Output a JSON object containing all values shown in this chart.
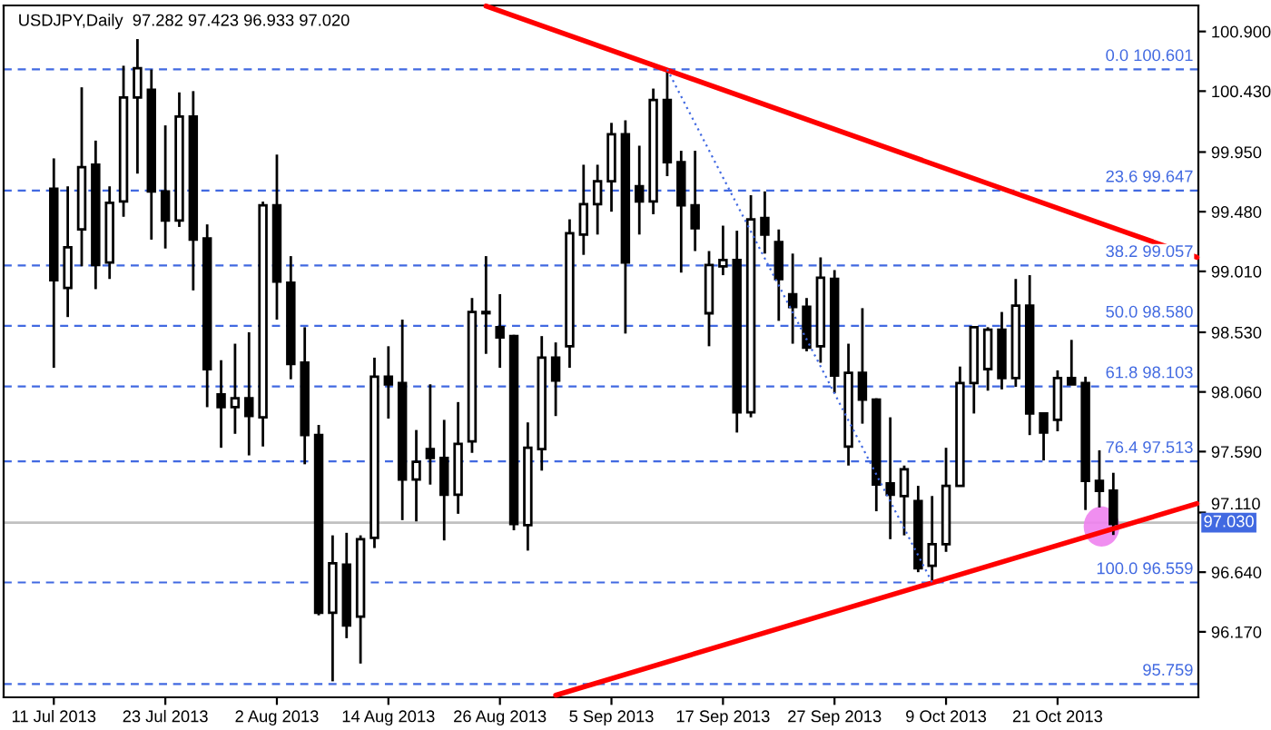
{
  "chart_data": {
    "type": "candlestick",
    "title": "USDJPY,Daily  97.282 97.423 96.933 97.020",
    "categories": [
      "11 Jul 2013",
      null,
      null,
      null,
      null,
      null,
      null,
      null,
      "23 Jul 2013",
      null,
      null,
      null,
      null,
      null,
      null,
      null,
      "2 Aug 2013",
      null,
      null,
      null,
      null,
      null,
      null,
      null,
      "14 Aug 2013",
      null,
      null,
      null,
      null,
      null,
      null,
      null,
      "26 Aug 2013",
      null,
      null,
      null,
      null,
      null,
      null,
      null,
      "5 Sep 2013",
      null,
      null,
      null,
      null,
      null,
      null,
      null,
      "17 Sep 2013",
      null,
      null,
      null,
      null,
      null,
      null,
      null,
      "27 Sep 2013",
      null,
      null,
      null,
      null,
      null,
      null,
      null,
      "9 Oct 2013",
      null,
      null,
      null,
      null,
      null,
      null,
      null,
      "21 Oct 2013",
      null,
      null,
      null,
      null,
      null,
      null,
      null,
      null,
      null,
      null
    ],
    "ohlc": [
      [
        99.66,
        99.9,
        98.25,
        98.94
      ],
      [
        98.88,
        99.68,
        98.65,
        99.2
      ],
      [
        99.34,
        100.46,
        99.05,
        99.83
      ],
      [
        99.85,
        100.04,
        98.87,
        99.06
      ],
      [
        99.08,
        99.68,
        98.95,
        99.55
      ],
      [
        99.56,
        100.63,
        99.44,
        100.38
      ],
      [
        100.38,
        100.84,
        99.78,
        100.61
      ],
      [
        100.44,
        100.6,
        99.26,
        99.64
      ],
      [
        99.64,
        100.16,
        99.19,
        99.41
      ],
      [
        99.41,
        100.42,
        99.36,
        100.23
      ],
      [
        100.23,
        100.43,
        98.86,
        99.26
      ],
      [
        99.27,
        99.38,
        97.94,
        98.24
      ],
      [
        98.04,
        98.31,
        97.62,
        97.94
      ],
      [
        97.94,
        98.44,
        97.73,
        98.01
      ],
      [
        98.01,
        98.53,
        97.56,
        97.87
      ],
      [
        97.86,
        99.56,
        97.63,
        99.53
      ],
      [
        99.53,
        99.93,
        98.63,
        98.93
      ],
      [
        98.92,
        99.13,
        98.16,
        98.28
      ],
      [
        98.29,
        98.57,
        97.49,
        97.72
      ],
      [
        97.72,
        97.8,
        96.3,
        96.32
      ],
      [
        96.32,
        96.93,
        95.78,
        96.71
      ],
      [
        96.7,
        96.95,
        96.12,
        96.22
      ],
      [
        96.29,
        96.93,
        95.92,
        96.9
      ],
      [
        96.91,
        98.33,
        96.83,
        98.18
      ],
      [
        98.18,
        98.42,
        97.85,
        98.12
      ],
      [
        98.13,
        98.63,
        97.05,
        97.37
      ],
      [
        97.37,
        97.76,
        97.04,
        97.51
      ],
      [
        97.61,
        98.12,
        97.33,
        97.54
      ],
      [
        97.54,
        97.84,
        96.89,
        97.25
      ],
      [
        97.25,
        97.98,
        97.1,
        97.65
      ],
      [
        97.67,
        98.8,
        97.58,
        98.69
      ],
      [
        98.69,
        99.13,
        98.36,
        98.68
      ],
      [
        98.57,
        98.83,
        98.25,
        98.49
      ],
      [
        98.5,
        98.51,
        96.97,
        97.02
      ],
      [
        97.01,
        97.82,
        96.81,
        97.62
      ],
      [
        97.61,
        98.5,
        97.44,
        98.33
      ],
      [
        98.33,
        98.45,
        97.87,
        98.15
      ],
      [
        98.42,
        99.42,
        98.25,
        99.31
      ],
      [
        99.3,
        99.85,
        99.14,
        99.54
      ],
      [
        99.54,
        99.85,
        99.3,
        99.72
      ],
      [
        99.72,
        100.18,
        99.48,
        100.09
      ],
      [
        100.09,
        100.2,
        98.52,
        99.08
      ],
      [
        99.68,
        100.0,
        99.3,
        99.56
      ],
      [
        99.56,
        100.45,
        99.46,
        100.36
      ],
      [
        100.36,
        100.601,
        99.76,
        99.87
      ],
      [
        99.87,
        99.96,
        99.0,
        99.53
      ],
      [
        99.53,
        99.96,
        99.17,
        99.35
      ],
      [
        98.68,
        99.17,
        98.42,
        99.06
      ],
      [
        99.05,
        99.37,
        98.98,
        99.1
      ],
      [
        99.1,
        99.33,
        97.74,
        97.9
      ],
      [
        97.9,
        99.61,
        97.86,
        99.42
      ],
      [
        99.43,
        99.64,
        99.15,
        99.3
      ],
      [
        99.24,
        99.34,
        98.62,
        98.95
      ],
      [
        98.83,
        99.15,
        98.44,
        98.73
      ],
      [
        98.73,
        98.8,
        98.38,
        98.41
      ],
      [
        98.42,
        99.12,
        98.29,
        98.96
      ],
      [
        98.95,
        99.02,
        98.05,
        98.19
      ],
      [
        97.63,
        98.44,
        97.48,
        98.21
      ],
      [
        98.21,
        98.72,
        97.81,
        98.0
      ],
      [
        98.0,
        98.01,
        97.12,
        97.33
      ],
      [
        97.34,
        97.86,
        96.9,
        97.25
      ],
      [
        97.24,
        97.48,
        96.93,
        97.45
      ],
      [
        97.2,
        97.32,
        96.64,
        96.67
      ],
      [
        96.69,
        97.24,
        96.559,
        96.86
      ],
      [
        96.86,
        97.62,
        96.8,
        97.32
      ],
      [
        97.32,
        98.26,
        97.32,
        98.13
      ],
      [
        98.13,
        98.58,
        97.89,
        98.57
      ],
      [
        98.24,
        98.57,
        98.07,
        98.55
      ],
      [
        98.55,
        98.69,
        98.08,
        98.17
      ],
      [
        98.17,
        98.95,
        98.1,
        98.74
      ],
      [
        98.74,
        98.98,
        97.72,
        97.89
      ],
      [
        97.89,
        97.89,
        97.52,
        97.74
      ],
      [
        97.84,
        98.23,
        97.75,
        98.17
      ],
      [
        98.17,
        98.47,
        98.12,
        98.12
      ],
      [
        98.13,
        98.18,
        97.13,
        97.36
      ],
      [
        97.36,
        97.6,
        97.15,
        97.28
      ],
      [
        97.282,
        97.423,
        96.933,
        97.02
      ],
      null,
      null,
      null,
      null,
      null,
      null
    ],
    "color": "#000000",
    "series": [
      {
        "type": "line",
        "color": "#ff0000",
        "line_style": "solid",
        "values": [
          null,
          null,
          null,
          null,
          null,
          null,
          null,
          null,
          null,
          null,
          null,
          null,
          null,
          null,
          null,
          null,
          null,
          null,
          null,
          null,
          null,
          null,
          null,
          null,
          null,
          null,
          null,
          null,
          null,
          null,
          null,
          101.1,
          null,
          null,
          null,
          null,
          null,
          null,
          null,
          null,
          null,
          null,
          null,
          null,
          null,
          null,
          null,
          null,
          null,
          null,
          null,
          null,
          null,
          null,
          null,
          null,
          null,
          null,
          null,
          null,
          null,
          null,
          null,
          null,
          null,
          null,
          null,
          null,
          null,
          null,
          null,
          null,
          null,
          null,
          null,
          null,
          null,
          null,
          null,
          null,
          null,
          null,
          99.12
        ]
      },
      {
        "type": "line",
        "color": "#ff0000",
        "line_style": "solid",
        "values": [
          null,
          null,
          null,
          null,
          null,
          null,
          null,
          null,
          null,
          null,
          null,
          null,
          null,
          null,
          null,
          null,
          null,
          null,
          null,
          null,
          null,
          null,
          null,
          null,
          null,
          null,
          null,
          null,
          null,
          null,
          null,
          null,
          null,
          null,
          null,
          null,
          95.67,
          null,
          null,
          null,
          null,
          null,
          null,
          null,
          null,
          null,
          null,
          null,
          null,
          null,
          null,
          null,
          null,
          null,
          null,
          null,
          null,
          null,
          null,
          null,
          null,
          null,
          null,
          null,
          null,
          null,
          null,
          null,
          null,
          null,
          null,
          null,
          null,
          null,
          null,
          null,
          null,
          null,
          null,
          null,
          null,
          null,
          97.18
        ]
      },
      {
        "type": "line",
        "color": "#4169e1",
        "line_style": "dotted",
        "values": [
          null,
          null,
          null,
          null,
          null,
          null,
          null,
          null,
          null,
          null,
          null,
          null,
          null,
          null,
          null,
          null,
          null,
          null,
          null,
          null,
          null,
          null,
          null,
          null,
          null,
          null,
          null,
          null,
          null,
          null,
          null,
          null,
          null,
          null,
          null,
          null,
          null,
          null,
          null,
          null,
          null,
          null,
          null,
          null,
          100.601,
          null,
          null,
          null,
          null,
          null,
          null,
          null,
          null,
          null,
          null,
          null,
          null,
          null,
          null,
          null,
          null,
          null,
          null,
          96.559,
          null,
          null,
          null,
          null,
          null,
          null,
          null,
          null,
          null,
          null,
          null,
          null,
          null,
          null,
          null,
          null,
          null,
          null,
          null
        ]
      }
    ],
    "ylim": [
      95.654,
      101.105
    ],
    "yticks": [
      {
        "value": 100.9,
        "label": "100.900"
      },
      {
        "value": 100.43,
        "label": "100.430"
      },
      {
        "value": 99.95,
        "label": "99.950"
      },
      {
        "value": 99.48,
        "label": "99.480"
      },
      {
        "value": 99.01,
        "label": "99.010"
      },
      {
        "value": 98.53,
        "label": "98.530"
      },
      {
        "value": 98.06,
        "label": "98.060"
      },
      {
        "value": 97.59,
        "label": "97.590"
      },
      {
        "value": 97.11,
        "label": "97.110"
      },
      {
        "value": 96.64,
        "label": "96.640"
      },
      {
        "value": 96.17,
        "label": "96.170"
      }
    ],
    "ref_lines": [
      {
        "axis": "y",
        "value": 100.601,
        "label": "0.0 100.601",
        "color": "#4169e1",
        "line_style": "dashed"
      },
      {
        "axis": "y",
        "value": 99.647,
        "label": "23.6 99.647",
        "color": "#4169e1",
        "line_style": "dashed"
      },
      {
        "axis": "y",
        "value": 99.057,
        "label": "38.2 99.057",
        "color": "#4169e1",
        "line_style": "dashed"
      },
      {
        "axis": "y",
        "value": 98.58,
        "label": "50.0 98.580",
        "color": "#4169e1",
        "line_style": "dashed"
      },
      {
        "axis": "y",
        "value": 98.103,
        "label": "61.8 98.103",
        "color": "#4169e1",
        "line_style": "dashed"
      },
      {
        "axis": "y",
        "value": 97.513,
        "label": "76.4 97.513",
        "color": "#4169e1",
        "line_style": "dashed"
      },
      {
        "axis": "y",
        "value": 96.559,
        "label": "100.0 96.559",
        "color": "#4169e1",
        "line_style": "dashed"
      },
      {
        "axis": "y",
        "value": 97.03,
        "label": "97.030",
        "color": "#c0c0c0",
        "line_style": "solid"
      },
      {
        "axis": "y",
        "value": 95.759,
        "label": "95.759",
        "color": "#4169e1",
        "line_style": "dashed"
      }
    ],
    "grid": false
  }
}
